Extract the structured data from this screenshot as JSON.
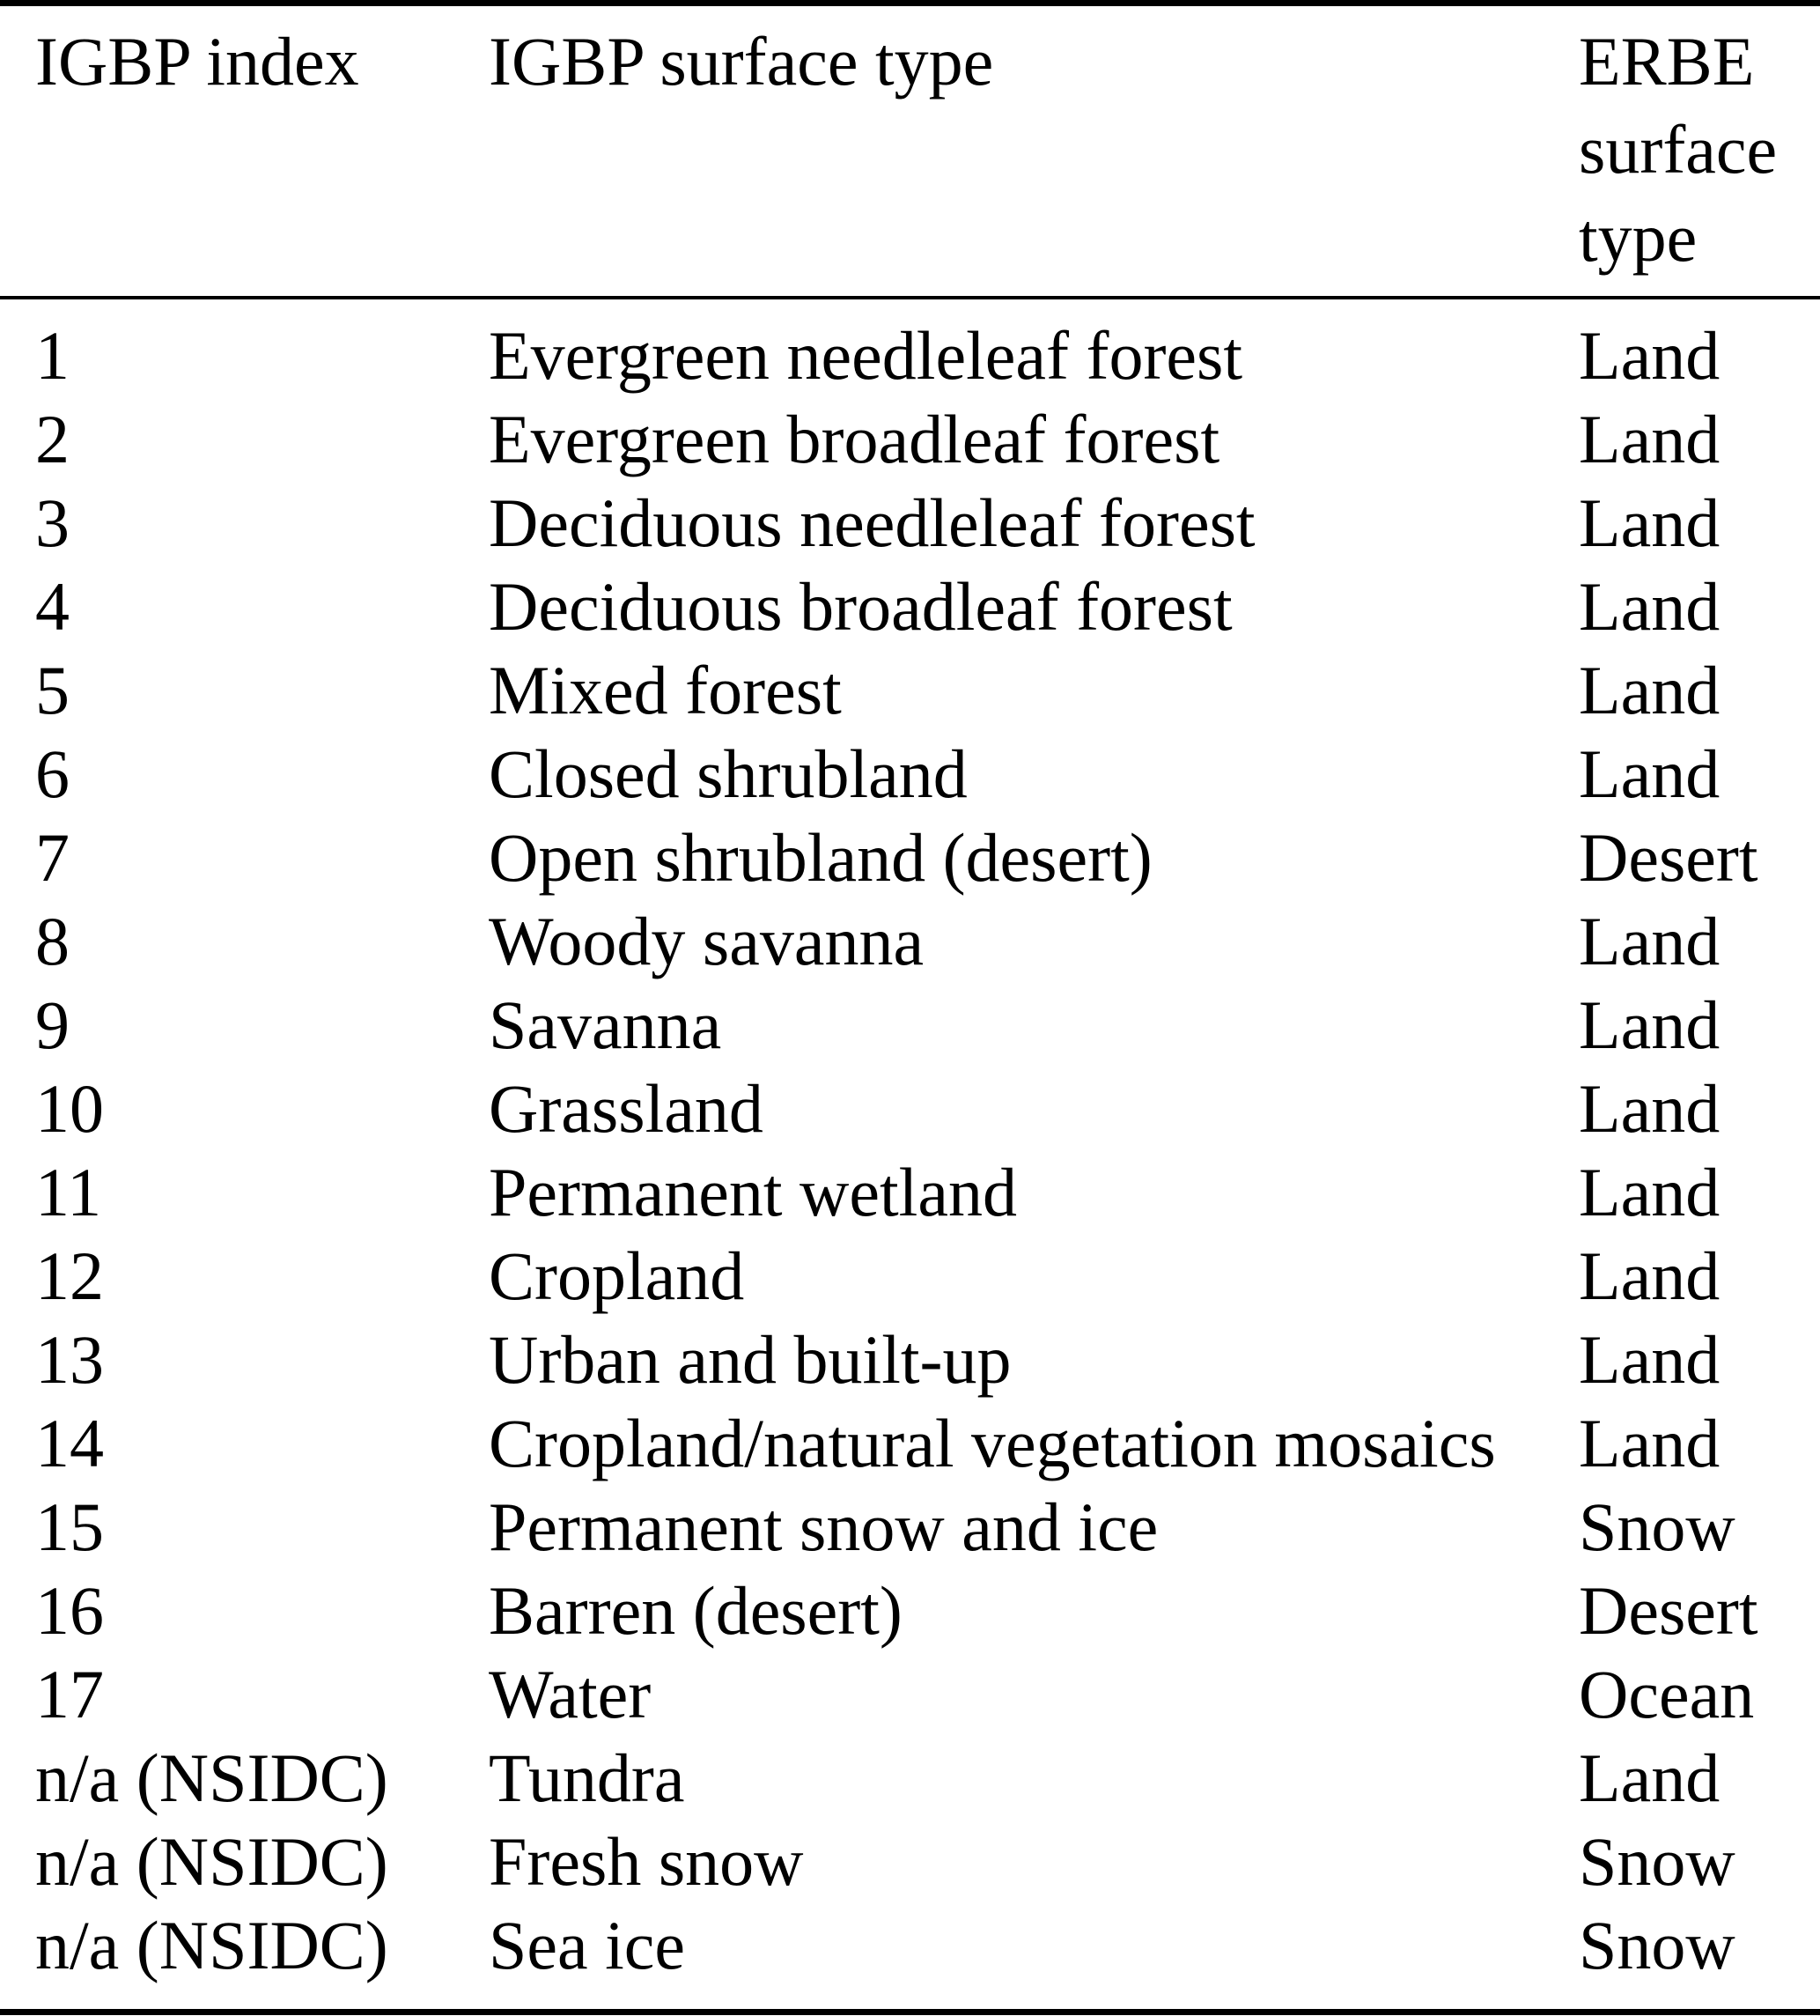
{
  "table": {
    "header": {
      "col1": "IGBP index",
      "col2": "IGBP surface type",
      "col3_lines": [
        "ERBE",
        "surface",
        "type"
      ]
    },
    "rows": [
      {
        "index": "1",
        "igbp": "Evergreen needleleaf forest",
        "erbe": "Land"
      },
      {
        "index": "2",
        "igbp": "Evergreen broadleaf forest",
        "erbe": "Land"
      },
      {
        "index": "3",
        "igbp": "Deciduous needleleaf forest",
        "erbe": "Land"
      },
      {
        "index": "4",
        "igbp": "Deciduous broadleaf forest",
        "erbe": "Land"
      },
      {
        "index": "5",
        "igbp": "Mixed forest",
        "erbe": "Land"
      },
      {
        "index": "6",
        "igbp": "Closed shrubland",
        "erbe": "Land"
      },
      {
        "index": "7",
        "igbp": "Open shrubland (desert)",
        "erbe": "Desert"
      },
      {
        "index": "8",
        "igbp": "Woody savanna",
        "erbe": "Land"
      },
      {
        "index": "9",
        "igbp": "Savanna",
        "erbe": "Land"
      },
      {
        "index": "10",
        "igbp": "Grassland",
        "erbe": "Land"
      },
      {
        "index": "11",
        "igbp": "Permanent wetland",
        "erbe": "Land"
      },
      {
        "index": "12",
        "igbp": "Cropland",
        "erbe": "Land"
      },
      {
        "index": "13",
        "igbp": "Urban and built-up",
        "erbe": "Land"
      },
      {
        "index": "14",
        "igbp": "Cropland/natural vegetation mosaics",
        "erbe": "Land"
      },
      {
        "index": "15",
        "igbp": "Permanent snow and ice",
        "erbe": "Snow"
      },
      {
        "index": "16",
        "igbp": "Barren (desert)",
        "erbe": "Desert"
      },
      {
        "index": "17",
        "igbp": "Water",
        "erbe": "Ocean"
      },
      {
        "index": "n/a (NSIDC)",
        "igbp": "Tundra",
        "erbe": "Land"
      },
      {
        "index": "n/a (NSIDC)",
        "igbp": "Fresh snow",
        "erbe": "Snow"
      },
      {
        "index": "n/a (NSIDC)",
        "igbp": "Sea ice",
        "erbe": "Snow"
      }
    ]
  },
  "colors": {
    "text": "#000000",
    "background": "#ffffff",
    "rule": "#000000"
  }
}
